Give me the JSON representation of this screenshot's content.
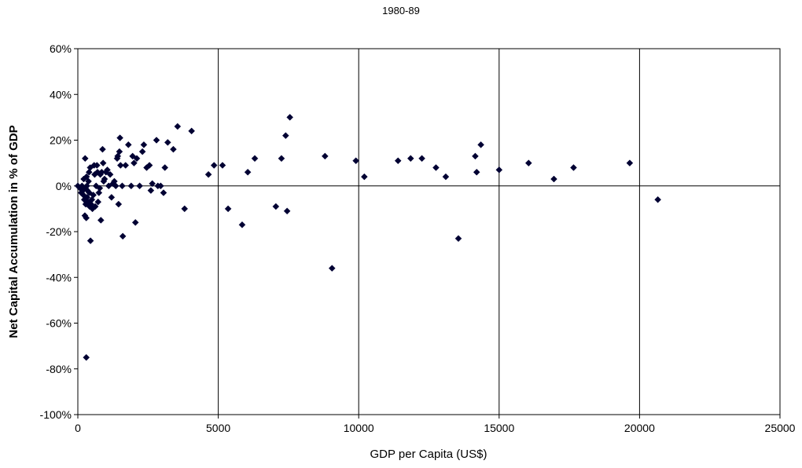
{
  "chart_data": {
    "type": "scatter",
    "title": "1980-89",
    "xlabel": "GDP per Capita (US$)",
    "ylabel": "Net Capital Accumulation in % of GDP",
    "xlim": [
      0,
      25000
    ],
    "ylim": [
      -100,
      60
    ],
    "x_ticks": [
      0,
      5000,
      10000,
      15000,
      20000,
      25000
    ],
    "x_tick_labels": [
      "0",
      "5000",
      "10000",
      "15000",
      "20000",
      "25000"
    ],
    "y_ticks": [
      -100,
      -80,
      -60,
      -40,
      -20,
      0,
      20,
      40,
      60
    ],
    "y_tick_labels": [
      "-100%",
      "-80%",
      "-60%",
      "-40%",
      "-20%",
      "0%",
      "20%",
      "40%",
      "60%"
    ],
    "grid": {
      "vertical": true,
      "horizontal": false
    },
    "marker": "diamond",
    "marker_color": "#000033",
    "points": [
      {
        "x": 0,
        "y": 0
      },
      {
        "x": 80,
        "y": -1
      },
      {
        "x": 120,
        "y": -3
      },
      {
        "x": 150,
        "y": 0
      },
      {
        "x": 180,
        "y": -2
      },
      {
        "x": 200,
        "y": -4
      },
      {
        "x": 210,
        "y": 3
      },
      {
        "x": 230,
        "y": -6
      },
      {
        "x": 250,
        "y": -13
      },
      {
        "x": 260,
        "y": 12
      },
      {
        "x": 270,
        "y": -1
      },
      {
        "x": 280,
        "y": -8
      },
      {
        "x": 300,
        "y": -14
      },
      {
        "x": 300,
        "y": -75
      },
      {
        "x": 310,
        "y": 4
      },
      {
        "x": 320,
        "y": 0
      },
      {
        "x": 330,
        "y": -5
      },
      {
        "x": 340,
        "y": -2
      },
      {
        "x": 360,
        "y": -7
      },
      {
        "x": 380,
        "y": 2
      },
      {
        "x": 400,
        "y": 6
      },
      {
        "x": 410,
        "y": -3
      },
      {
        "x": 420,
        "y": -9
      },
      {
        "x": 440,
        "y": 8
      },
      {
        "x": 450,
        "y": -24
      },
      {
        "x": 470,
        "y": -8
      },
      {
        "x": 500,
        "y": -6
      },
      {
        "x": 520,
        "y": -10
      },
      {
        "x": 550,
        "y": -4
      },
      {
        "x": 580,
        "y": 9
      },
      {
        "x": 600,
        "y": 5
      },
      {
        "x": 620,
        "y": -9
      },
      {
        "x": 650,
        "y": 0
      },
      {
        "x": 680,
        "y": 9
      },
      {
        "x": 700,
        "y": 6
      },
      {
        "x": 720,
        "y": -7
      },
      {
        "x": 750,
        "y": -3
      },
      {
        "x": 780,
        "y": -1
      },
      {
        "x": 800,
        "y": 5
      },
      {
        "x": 820,
        "y": -15
      },
      {
        "x": 850,
        "y": 6
      },
      {
        "x": 880,
        "y": 16
      },
      {
        "x": 900,
        "y": 10
      },
      {
        "x": 920,
        "y": 2
      },
      {
        "x": 950,
        "y": 3
      },
      {
        "x": 1000,
        "y": 6
      },
      {
        "x": 1050,
        "y": 7
      },
      {
        "x": 1100,
        "y": 0
      },
      {
        "x": 1150,
        "y": 5
      },
      {
        "x": 1200,
        "y": -5
      },
      {
        "x": 1250,
        "y": 1
      },
      {
        "x": 1300,
        "y": 2
      },
      {
        "x": 1350,
        "y": 0
      },
      {
        "x": 1400,
        "y": 12
      },
      {
        "x": 1420,
        "y": 13
      },
      {
        "x": 1450,
        "y": -8
      },
      {
        "x": 1480,
        "y": 15
      },
      {
        "x": 1500,
        "y": 21
      },
      {
        "x": 1520,
        "y": 9
      },
      {
        "x": 1580,
        "y": 0
      },
      {
        "x": 1600,
        "y": -22
      },
      {
        "x": 1700,
        "y": 9
      },
      {
        "x": 1800,
        "y": 18
      },
      {
        "x": 1900,
        "y": 0
      },
      {
        "x": 1950,
        "y": 13
      },
      {
        "x": 2000,
        "y": 10
      },
      {
        "x": 2050,
        "y": -16
      },
      {
        "x": 2100,
        "y": 12
      },
      {
        "x": 2200,
        "y": 0
      },
      {
        "x": 2300,
        "y": 15
      },
      {
        "x": 2350,
        "y": 18
      },
      {
        "x": 2450,
        "y": 8
      },
      {
        "x": 2550,
        "y": 9
      },
      {
        "x": 2600,
        "y": -2
      },
      {
        "x": 2650,
        "y": 1
      },
      {
        "x": 2800,
        "y": 20
      },
      {
        "x": 2850,
        "y": 0
      },
      {
        "x": 2950,
        "y": 0
      },
      {
        "x": 3050,
        "y": -3
      },
      {
        "x": 3100,
        "y": 8
      },
      {
        "x": 3200,
        "y": 19
      },
      {
        "x": 3400,
        "y": 16
      },
      {
        "x": 3550,
        "y": 26
      },
      {
        "x": 3800,
        "y": -10
      },
      {
        "x": 4050,
        "y": 24
      },
      {
        "x": 4650,
        "y": 5
      },
      {
        "x": 4850,
        "y": 9
      },
      {
        "x": 5150,
        "y": 9
      },
      {
        "x": 5350,
        "y": -10
      },
      {
        "x": 5850,
        "y": -17
      },
      {
        "x": 6050,
        "y": 6
      },
      {
        "x": 6300,
        "y": 12
      },
      {
        "x": 7050,
        "y": -9
      },
      {
        "x": 7250,
        "y": 12
      },
      {
        "x": 7400,
        "y": 22
      },
      {
        "x": 7450,
        "y": -11
      },
      {
        "x": 7550,
        "y": 30
      },
      {
        "x": 8800,
        "y": 13
      },
      {
        "x": 9050,
        "y": -36
      },
      {
        "x": 9900,
        "y": 11
      },
      {
        "x": 10200,
        "y": 4
      },
      {
        "x": 11400,
        "y": 11
      },
      {
        "x": 11850,
        "y": 12
      },
      {
        "x": 12250,
        "y": 12
      },
      {
        "x": 12750,
        "y": 8
      },
      {
        "x": 13100,
        "y": 4
      },
      {
        "x": 13550,
        "y": -23
      },
      {
        "x": 14150,
        "y": 13
      },
      {
        "x": 14200,
        "y": 6
      },
      {
        "x": 14350,
        "y": 18
      },
      {
        "x": 15000,
        "y": 7
      },
      {
        "x": 16050,
        "y": 10
      },
      {
        "x": 16950,
        "y": 3
      },
      {
        "x": 17650,
        "y": 8
      },
      {
        "x": 19650,
        "y": 10
      },
      {
        "x": 20650,
        "y": -6
      }
    ]
  }
}
